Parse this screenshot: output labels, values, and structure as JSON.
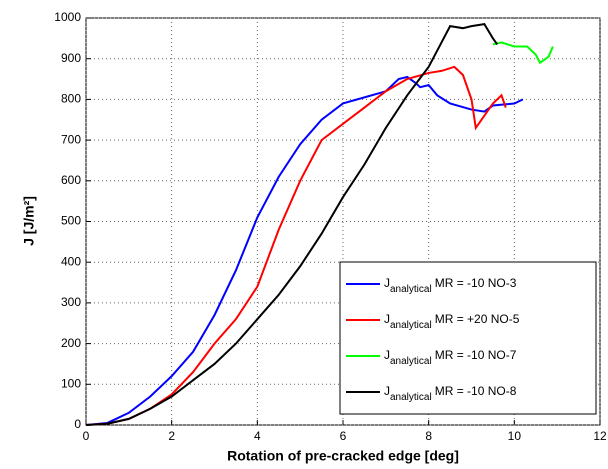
{
  "chart_data": {
    "type": "line",
    "xlabel": "Rotation of pre-cracked edge [deg]",
    "ylabel": "J [J/m²]",
    "legend_prefix": {
      "main": "J",
      "sub": "analytical"
    },
    "xlim": [
      0,
      12
    ],
    "xticks": [
      0,
      2,
      4,
      6,
      8,
      10,
      12
    ],
    "ylim": [
      0,
      1000
    ],
    "yticks": [
      0,
      100,
      200,
      300,
      400,
      500,
      600,
      700,
      800,
      900,
      1000
    ],
    "grid": true,
    "legend": "lower right",
    "series": [
      {
        "name": "MR = -10 NO-3",
        "color": "#0000ff",
        "x": [
          0,
          0.5,
          1,
          1.5,
          2,
          2.5,
          3,
          3.5,
          4,
          4.5,
          5,
          5.5,
          6,
          6.5,
          7,
          7.3,
          7.5,
          7.7,
          7.8,
          8,
          8.2,
          8.5,
          9,
          9.3,
          9.5,
          10,
          10.2
        ],
        "values": [
          0,
          5,
          30,
          70,
          120,
          180,
          270,
          380,
          510,
          610,
          690,
          750,
          790,
          805,
          820,
          850,
          855,
          840,
          830,
          835,
          810,
          790,
          775,
          770,
          785,
          790,
          800
        ]
      },
      {
        "name": "MR = +20 NO-5",
        "color": "#ff0000",
        "x": [
          0,
          0.5,
          1,
          1.5,
          2,
          2.5,
          3,
          3.5,
          4,
          4.5,
          5,
          5.5,
          6,
          6.5,
          7,
          7.5,
          8,
          8.3,
          8.6,
          8.8,
          9,
          9.1,
          9.3,
          9.5,
          9.7,
          9.8
        ],
        "values": [
          0,
          3,
          15,
          40,
          75,
          130,
          200,
          260,
          340,
          480,
          600,
          700,
          740,
          780,
          820,
          850,
          865,
          870,
          880,
          860,
          800,
          730,
          760,
          790,
          810,
          780
        ]
      },
      {
        "name": "MR = -10 NO-7",
        "color": "#00ff00",
        "x": [
          9.5,
          9.7,
          10,
          10.3,
          10.5,
          10.6,
          10.8,
          10.9
        ],
        "values": [
          935,
          940,
          930,
          930,
          910,
          890,
          905,
          930
        ]
      },
      {
        "name": "MR = -10 NO-8",
        "color": "#000000",
        "x": [
          0,
          0.5,
          1,
          1.5,
          2,
          2.5,
          3,
          3.5,
          4,
          4.5,
          5,
          5.5,
          6,
          6.5,
          7,
          7.5,
          8,
          8.3,
          8.5,
          8.8,
          9,
          9.3,
          9.5,
          9.6
        ],
        "values": [
          0,
          3,
          15,
          40,
          70,
          110,
          150,
          200,
          260,
          320,
          390,
          470,
          560,
          640,
          730,
          810,
          880,
          940,
          980,
          975,
          980,
          985,
          950,
          935
        ]
      }
    ]
  }
}
